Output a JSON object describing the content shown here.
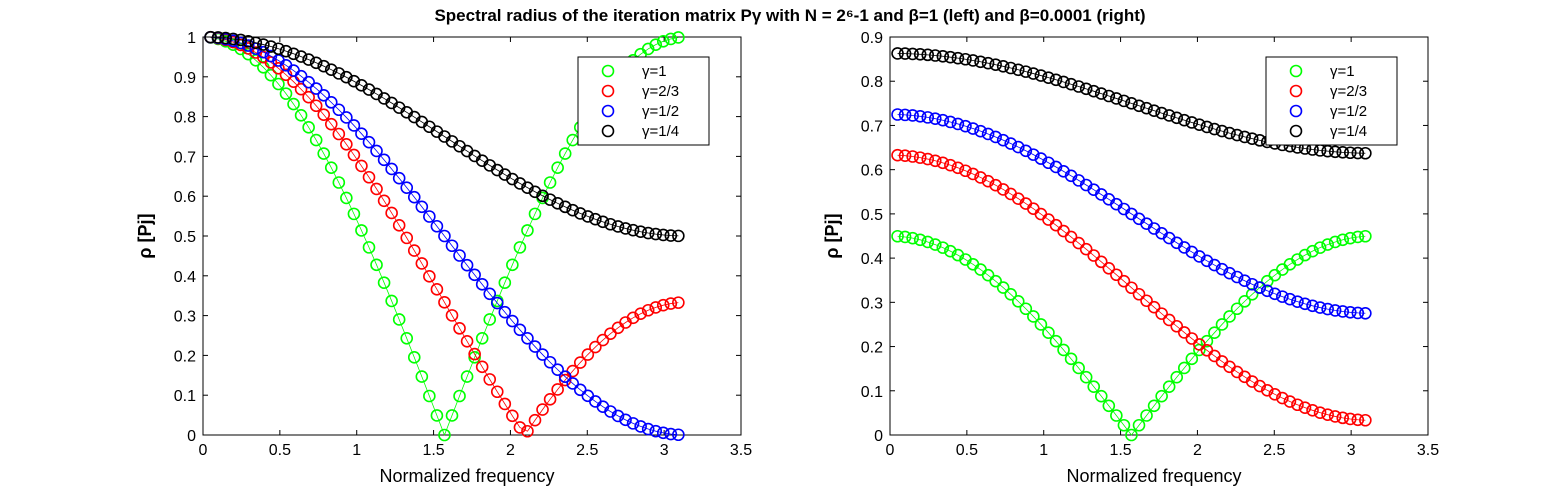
{
  "title": "Spectral radius of the iteration matrix Pγ with N = 2⁶-1 and β=1  (left) and β=0.0001 (right)",
  "chart_data": [
    {
      "type": "scatter",
      "marker": "open-circle",
      "xlabel": "Normalized frequency",
      "ylabel": "ρ [Pj]",
      "xlim": [
        0,
        3.5
      ],
      "ylim": [
        0,
        1
      ],
      "xticks": [
        "0",
        "0.5",
        "1",
        "1.5",
        "2",
        "2.5",
        "3",
        "3.5"
      ],
      "yticks": [
        "0",
        "0.1",
        "0.2",
        "0.3",
        "0.4",
        "0.5",
        "0.6",
        "0.7",
        "0.8",
        "0.9",
        "1"
      ],
      "legend_position": "top-right",
      "x": {
        "start_k": 1,
        "end_k": 63,
        "denominator": 64,
        "multiplier": "pi"
      },
      "series": [
        {
          "name": "γ=1",
          "color": "#00ff00",
          "formula": "|1 - 2*gamma*sin^2(x/2)|",
          "gamma": 1
        },
        {
          "name": "γ=2/3",
          "color": "#ff0000",
          "formula": "|1 - 2*gamma*sin^2(x/2)|",
          "gamma": 0.6667
        },
        {
          "name": "γ=1/2",
          "color": "#0000ff",
          "formula": "|1 - 2*gamma*sin^2(x/2)|",
          "gamma": 0.5
        },
        {
          "name": "γ=1/4",
          "color": "#000000",
          "formula": "|1 - 2*gamma*sin^2(x/2)|",
          "gamma": 0.25
        }
      ]
    },
    {
      "type": "scatter",
      "marker": "open-circle",
      "xlabel": "Normalized frequency",
      "ylabel": "ρ [Pj]",
      "xlim": [
        0,
        3.5
      ],
      "ylim": [
        0,
        0.9
      ],
      "xticks": [
        "0",
        "0.5",
        "1",
        "1.5",
        "2",
        "2.5",
        "3",
        "3.5"
      ],
      "yticks": [
        "0",
        "0.1",
        "0.2",
        "0.3",
        "0.4",
        "0.5",
        "0.6",
        "0.7",
        "0.8",
        "0.9"
      ],
      "legend_position": "top-right",
      "x": {
        "start_k": 1,
        "end_k": 63,
        "denominator": 64,
        "multiplier": "pi"
      },
      "series": [
        {
          "name": "γ=1",
          "color": "#00ff00",
          "value_at_x0": 0.45,
          "value_at_pi_over_2": 0.0,
          "value_at_pi": 0.45
        },
        {
          "name": "γ=2/3",
          "color": "#ff0000",
          "value_at_x0": 0.633,
          "value_at_pi": 0.033
        },
        {
          "name": "γ=1/2",
          "color": "#0000ff",
          "value_at_x0": 0.725,
          "value_at_pi": 0.275
        },
        {
          "name": "γ=1/4",
          "color": "#000000",
          "value_at_x0": 0.863,
          "value_at_pi": 0.637
        }
      ]
    }
  ]
}
